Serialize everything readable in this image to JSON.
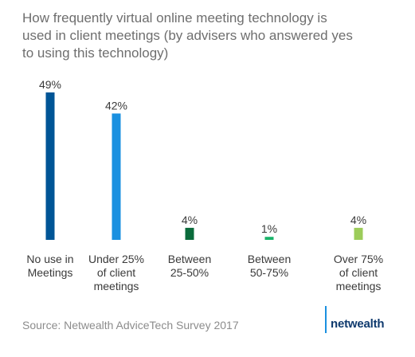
{
  "title_lines": [
    "How frequently virtual online meeting technology is",
    "used in client meetings (by advisers who answered yes",
    "to using this technology)"
  ],
  "source": "Source: Netwealth AdviceTech Survey 2017",
  "brand": "netwealth",
  "colors": {
    "title": "#6e6e6e",
    "label": "#3a3a3a",
    "source": "#8c8c8c",
    "brand": "#0f3a6e",
    "brand_accent": "#1a90e0"
  },
  "chart_data": {
    "type": "bar",
    "categories": [
      [
        "No use in",
        "Meetings"
      ],
      [
        "Under 25%",
        "of client",
        "meetings"
      ],
      [
        "Between",
        "25-50%"
      ],
      [
        "Between",
        "50-75%"
      ],
      [
        "Over 75%",
        "of client",
        "meetings"
      ]
    ],
    "values": [
      49,
      42,
      4,
      1,
      4
    ],
    "value_labels": [
      "49%",
      "42%",
      "4%",
      "1%",
      "4%"
    ],
    "bar_colors": [
      "#005596",
      "#1a90e0",
      "#0a6b3b",
      "#19b46a",
      "#9ccc5a"
    ],
    "ylim": [
      0,
      49
    ],
    "grid": false,
    "legend": "none"
  }
}
